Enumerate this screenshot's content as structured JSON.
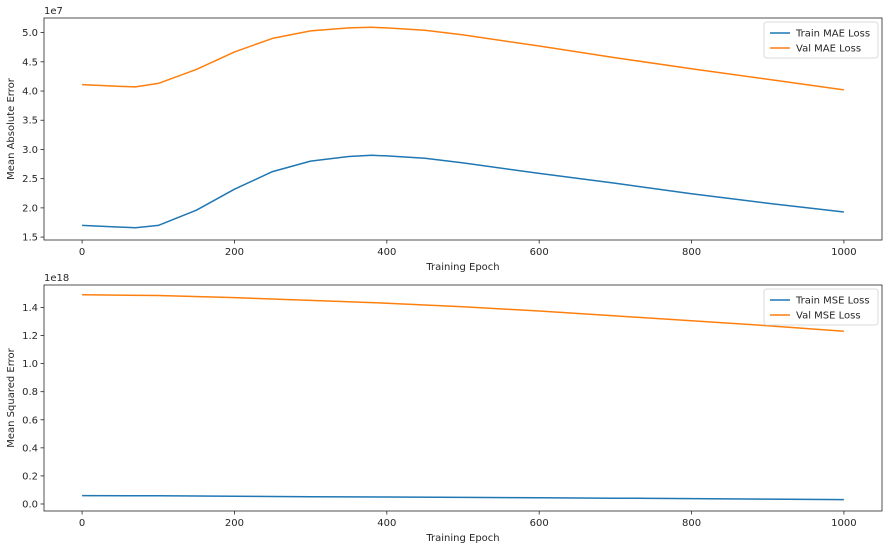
{
  "chart_data": [
    {
      "type": "line",
      "title": "",
      "xlabel": "Training Epoch",
      "ylabel": "Mean Absolute Error",
      "offset_label": "1e7",
      "scale": 10000000,
      "xlim": [
        -50,
        1050
      ],
      "ylim": [
        1.45,
        5.25
      ],
      "xticks": [
        0,
        200,
        400,
        600,
        800,
        1000
      ],
      "yticks": [
        1.5,
        2.0,
        2.5,
        3.0,
        3.5,
        4.0,
        4.5,
        5.0
      ],
      "ytick_labels": [
        "1.5",
        "2.0",
        "2.5",
        "3.0",
        "3.5",
        "4.0",
        "4.5",
        "5.0"
      ],
      "legend_position": "top-right",
      "grid": false,
      "x": [
        0,
        50,
        70,
        100,
        150,
        200,
        250,
        300,
        350,
        380,
        400,
        450,
        500,
        600,
        700,
        800,
        900,
        1000
      ],
      "series": [
        {
          "name": "Train MAE Loss",
          "color": "#1f77b4",
          "values": [
            1.7,
            1.67,
            1.66,
            1.7,
            1.96,
            2.32,
            2.62,
            2.8,
            2.88,
            2.9,
            2.89,
            2.85,
            2.77,
            2.59,
            2.42,
            2.24,
            2.08,
            1.93
          ]
        },
        {
          "name": "Val MAE Loss",
          "color": "#ff7f0e",
          "values": [
            4.11,
            4.08,
            4.07,
            4.13,
            4.37,
            4.67,
            4.9,
            5.03,
            5.08,
            5.09,
            5.08,
            5.04,
            4.96,
            4.77,
            4.57,
            4.38,
            4.2,
            4.02
          ]
        }
      ]
    },
    {
      "type": "line",
      "title": "",
      "xlabel": "Training Epoch",
      "ylabel": "Mean Squared Error",
      "offset_label": "1e18",
      "scale": 1000000000000000000,
      "xlim": [
        -50,
        1050
      ],
      "ylim": [
        -0.05,
        1.56
      ],
      "xticks": [
        0,
        200,
        400,
        600,
        800,
        1000
      ],
      "yticks": [
        0.0,
        0.2,
        0.4,
        0.6,
        0.8,
        1.0,
        1.2,
        1.4
      ],
      "ytick_labels": [
        "0.0",
        "0.2",
        "0.4",
        "0.6",
        "0.8",
        "1.0",
        "1.2",
        "1.4"
      ],
      "legend_position": "top-right",
      "grid": false,
      "x": [
        0,
        100,
        200,
        300,
        400,
        500,
        600,
        700,
        800,
        900,
        1000
      ],
      "series": [
        {
          "name": "Train MSE Loss",
          "color": "#1f77b4",
          "values": [
            0.06,
            0.058,
            0.055,
            0.052,
            0.05,
            0.047,
            0.044,
            0.041,
            0.038,
            0.035,
            0.031
          ]
        },
        {
          "name": "Val MSE Loss",
          "color": "#ff7f0e",
          "values": [
            1.49,
            1.485,
            1.47,
            1.45,
            1.43,
            1.405,
            1.375,
            1.34,
            1.305,
            1.27,
            1.23
          ]
        }
      ]
    }
  ]
}
